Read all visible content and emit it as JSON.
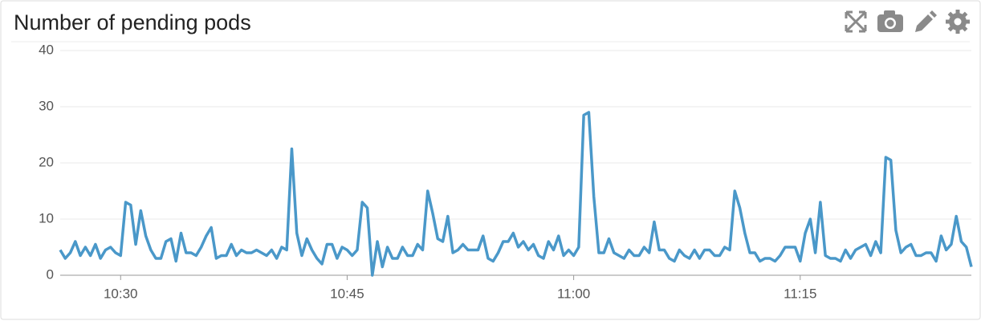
{
  "chart_data": {
    "type": "line",
    "title": "Number of pending pods",
    "x": [
      37560,
      37580,
      37600,
      37620,
      37640,
      37660,
      37680,
      37700,
      37720,
      37740,
      37760,
      37780,
      37800,
      37820,
      37840,
      37860,
      37880,
      37900,
      37920,
      37940,
      37960,
      37980,
      38000,
      38020,
      38040,
      38060,
      38080,
      38100,
      38120,
      38140,
      38160,
      38180,
      38200,
      38220,
      38240,
      38260,
      38280,
      38300,
      38320,
      38340,
      38360,
      38380,
      38400,
      38420,
      38440,
      38460,
      38480,
      38500,
      38520,
      38540,
      38560,
      38580,
      38600,
      38620,
      38640,
      38660,
      38680,
      38700,
      38720,
      38740,
      38760,
      38780,
      38800,
      38820,
      38840,
      38860,
      38880,
      38900,
      38920,
      38940,
      38960,
      38980,
      39000,
      39020,
      39040,
      39060,
      39080,
      39100,
      39120,
      39140,
      39160,
      39180,
      39200,
      39220,
      39240,
      39260,
      39280,
      39300,
      39320,
      39340,
      39360,
      39380,
      39400,
      39420,
      39440,
      39460,
      39480,
      39500,
      39520,
      39540,
      39560,
      39580,
      39600,
      39620,
      39640,
      39660,
      39680,
      39700,
      39720,
      39740,
      39760,
      39780,
      39800,
      39820,
      39840,
      39860,
      39880,
      39900,
      39920,
      39940,
      39960,
      39980,
      40000,
      40020,
      40040,
      40060,
      40080,
      40100,
      40120,
      40140,
      40160,
      40180,
      40200,
      40220,
      40240,
      40260,
      40280,
      40300,
      40320,
      40340,
      40360,
      40380,
      40400,
      40420,
      40440,
      40460,
      40480,
      40500,
      40520,
      40540,
      40560,
      40580,
      40600,
      40620,
      40640,
      40660,
      40680,
      40700,
      40720,
      40740,
      40760,
      40780,
      40800,
      40820,
      40840,
      40860,
      40880,
      40900,
      40920,
      40940,
      40960,
      40980,
      41000,
      41020,
      41040,
      41060,
      41080,
      41100,
      41120,
      41140,
      41160,
      41180
    ],
    "series": [
      {
        "name": "pending pods",
        "color": "#4a98c9",
        "values": [
          4.5,
          3,
          4,
          6,
          3.5,
          5,
          3.5,
          5.5,
          3,
          4.5,
          5,
          4,
          3.5,
          13,
          12.5,
          5.5,
          11.5,
          7,
          4.5,
          3,
          3,
          6,
          6.5,
          2.5,
          7.5,
          4,
          4,
          3.5,
          5,
          7,
          8.5,
          3,
          3.5,
          3.5,
          5.5,
          3.5,
          4.5,
          4,
          4,
          4.5,
          4,
          3.5,
          4.5,
          3,
          5,
          4.5,
          22.5,
          7.5,
          3.5,
          6.5,
          4.5,
          3,
          2,
          5.5,
          5.5,
          3,
          5,
          4.5,
          3.5,
          4.5,
          13,
          12,
          0,
          6,
          1.5,
          5,
          3,
          3,
          5,
          3.5,
          3.5,
          5.5,
          4.5,
          15,
          11,
          6.5,
          6,
          10.5,
          4,
          4.5,
          5.5,
          4.5,
          4.5,
          4.5,
          7,
          3,
          2.5,
          4,
          6,
          6,
          7.5,
          5,
          6,
          4.5,
          5.5,
          3.5,
          3,
          6,
          4.5,
          7,
          3.5,
          4.5,
          3.5,
          5,
          28.5,
          29,
          14,
          4,
          4,
          6.5,
          4,
          3.5,
          3,
          4.5,
          3.5,
          3.5,
          5,
          4,
          9.5,
          4.5,
          4.5,
          3,
          2.5,
          4.5,
          3.5,
          3,
          4.5,
          3,
          4.5,
          4.5,
          3.5,
          3.5,
          5,
          4.5,
          15,
          12,
          7.5,
          4,
          4,
          2.5,
          3,
          3,
          2.5,
          3.5,
          5,
          5,
          5,
          2.5,
          7.5,
          10,
          4,
          13,
          3.5,
          3,
          3,
          2.5,
          4.5,
          3,
          4.5,
          5,
          5.5,
          3.5,
          6,
          4,
          21,
          20.5,
          8,
          4,
          5,
          5.5,
          3.5,
          3.5,
          4,
          4,
          2.5,
          7,
          4.5,
          5.5,
          10.5,
          6,
          5,
          1.5
        ]
      }
    ],
    "xlim": [
      37560,
      41180
    ],
    "xticks": [
      {
        "value": 37800,
        "label": "10:30"
      },
      {
        "value": 38700,
        "label": "10:45"
      },
      {
        "value": 39600,
        "label": "11:00"
      },
      {
        "value": 40500,
        "label": "11:15"
      }
    ],
    "ylim": [
      0,
      40
    ],
    "yticks": [
      0,
      10,
      20,
      30,
      40
    ],
    "grid": true
  }
}
